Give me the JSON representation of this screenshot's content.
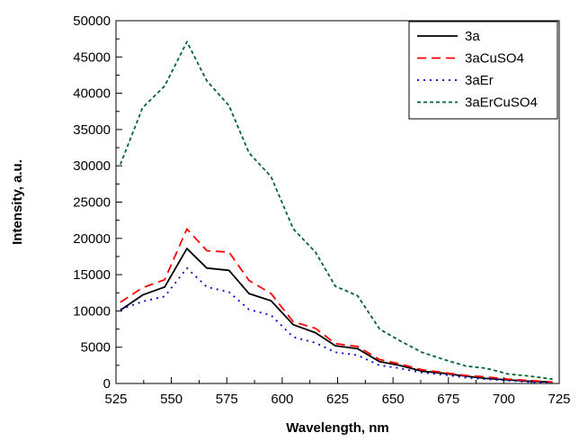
{
  "chart_data": {
    "type": "line",
    "title": "",
    "xlabel": "Wavelength, nm",
    "ylabel": "Intensity, a.u.",
    "xlim": [
      525,
      725
    ],
    "ylim": [
      0,
      50000
    ],
    "x_ticks": [
      525,
      550,
      575,
      600,
      625,
      650,
      675,
      700,
      725
    ],
    "y_ticks": [
      0,
      5000,
      10000,
      15000,
      20000,
      25000,
      30000,
      35000,
      40000,
      45000,
      50000
    ],
    "grid": false,
    "legend_position": "top-right",
    "x": [
      527,
      537,
      547,
      557,
      566,
      576,
      585,
      595,
      605,
      615,
      624,
      634,
      644,
      653,
      663,
      673,
      683,
      692,
      702,
      712,
      722
    ],
    "series": [
      {
        "name": "3a",
        "color": "#000000",
        "dash": "solid",
        "values": [
          10100,
          12200,
          13300,
          18600,
          15900,
          15600,
          12400,
          11400,
          8100,
          7000,
          5200,
          4800,
          3000,
          2500,
          1700,
          1400,
          1000,
          700,
          500,
          300,
          200
        ]
      },
      {
        "name": "3aCuSO4",
        "color": "#ff0000",
        "dash": "dashed",
        "values": [
          11200,
          13200,
          14300,
          21300,
          18300,
          18100,
          14200,
          12400,
          8500,
          7600,
          5500,
          5100,
          3300,
          2700,
          1900,
          1500,
          1100,
          900,
          600,
          400,
          200
        ]
      },
      {
        "name": "3aEr",
        "color": "#0000cc",
        "dash": "dotted",
        "values": [
          10200,
          11300,
          12000,
          15900,
          13300,
          12600,
          10200,
          9400,
          6400,
          5600,
          4300,
          3900,
          2500,
          2100,
          1500,
          1200,
          800,
          600,
          400,
          200,
          100
        ]
      },
      {
        "name": "3aErCuSO4",
        "color": "#006633",
        "dash": "short-dashed",
        "values": [
          30200,
          38000,
          41000,
          47100,
          41700,
          38300,
          31800,
          28500,
          21300,
          18100,
          13400,
          12100,
          7500,
          5900,
          4300,
          3300,
          2400,
          2100,
          1300,
          1000,
          600
        ]
      }
    ]
  }
}
